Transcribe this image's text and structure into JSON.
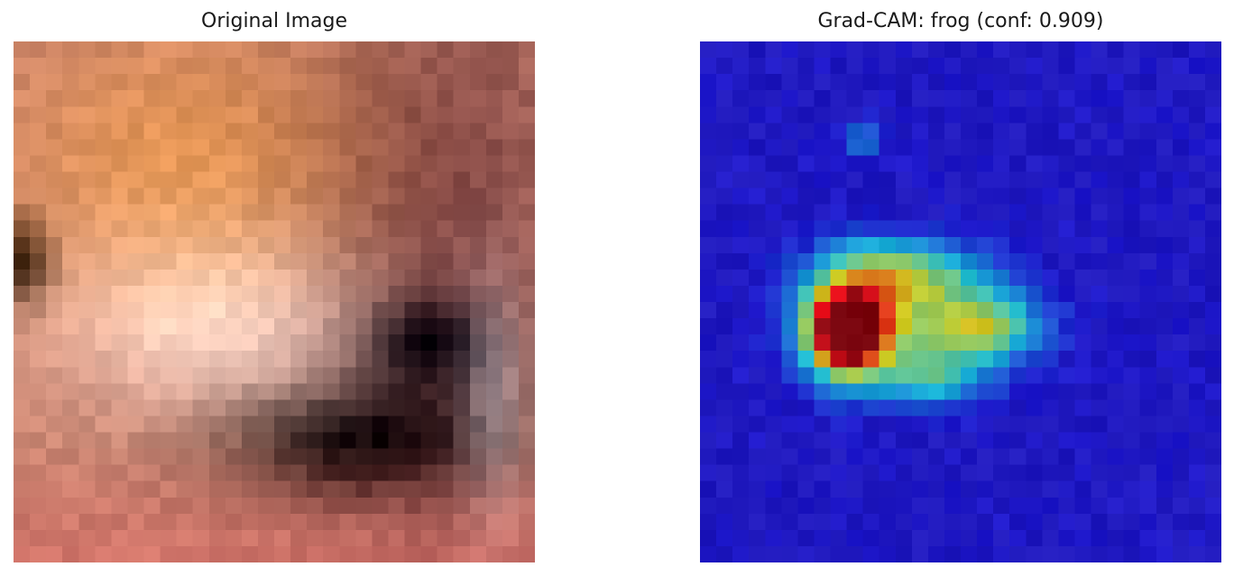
{
  "panels": {
    "left": {
      "title": "Original Image"
    },
    "right": {
      "title": "Grad-CAM: frog (conf: 0.909)"
    }
  },
  "colors": {
    "background": "#ffffff",
    "title_text": "#1a1a1a",
    "heatmap_low": "#2b1f86",
    "heatmap_high": "#d42a20"
  }
}
